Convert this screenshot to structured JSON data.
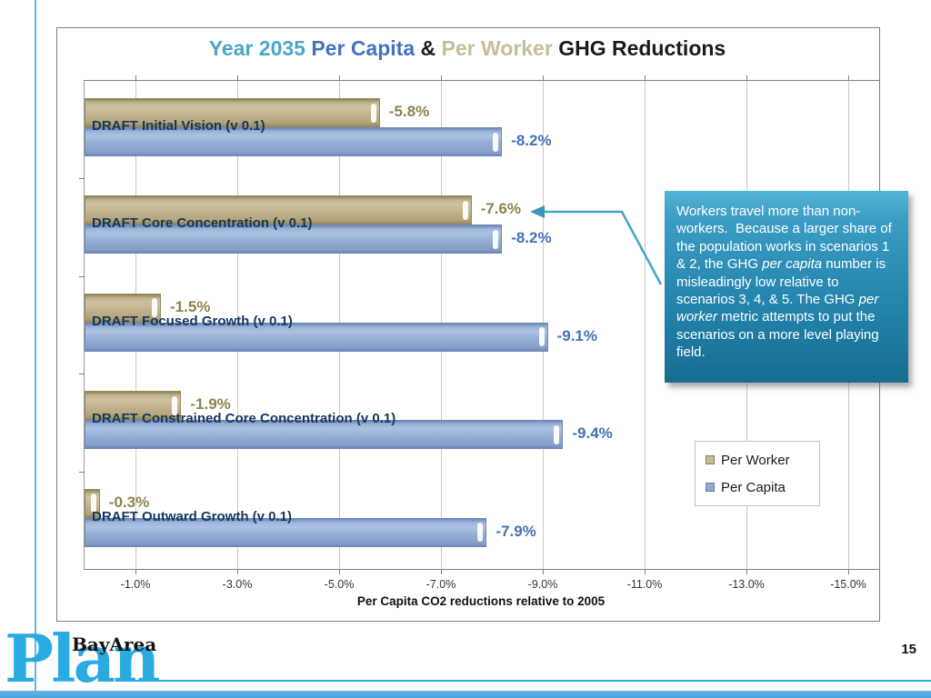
{
  "slide": {
    "page_number": "15"
  },
  "title": {
    "segments": [
      {
        "text": "Year 2035 ",
        "color": "#4BA6C9"
      },
      {
        "text": "Per Capita",
        "color": "#4473BE"
      },
      {
        "text": " & ",
        "color": "#1a1a1a"
      },
      {
        "text": "Per Worker",
        "color": "#C6BD98"
      },
      {
        "text": " GHG Reductions",
        "color": "#1a1a1a"
      }
    ]
  },
  "chart_data": {
    "type": "bar",
    "orientation": "horizontal",
    "categories": [
      "DRAFT Initial Vision (v 0.1)",
      "DRAFT Core Concentration (v 0.1)",
      "DRAFT Focused Growth (v 0.1)",
      "DRAFT Constrained Core Concentration (v 0.1)",
      "DRAFT Outward Growth (v 0.1)"
    ],
    "series": [
      {
        "name": "Per Worker",
        "color": "#C2B48E",
        "values": [
          -5.8,
          -7.6,
          -1.5,
          -1.9,
          -0.3
        ],
        "labels": [
          "-5.8%",
          "-7.6%",
          "-1.5%",
          "-1.9%",
          "-0.3%"
        ]
      },
      {
        "name": "Per Capita",
        "color": "#93AED4",
        "values": [
          -8.2,
          -8.2,
          -9.1,
          -9.4,
          -7.9
        ],
        "labels": [
          "-8.2%",
          "-8.2%",
          "-9.1%",
          "-9.4%",
          "-7.9%"
        ]
      }
    ],
    "x_ticks": [
      "-1.0%",
      "-3.0%",
      "-5.0%",
      "-7.0%",
      "-9.0%",
      "-11.0%",
      "-13.0%",
      "-15.0%"
    ],
    "xlabel": "Per Capita CO2 reductions relative to 2005",
    "xlim": [
      0,
      -15.6
    ],
    "grid": true,
    "legend_position": "right-middle"
  },
  "legend": {
    "items": [
      {
        "label": "Per Worker",
        "swatch": "tan"
      },
      {
        "label": "Per Capita",
        "swatch": "blue"
      }
    ]
  },
  "callout": {
    "segments": [
      {
        "text": "Workers travel more than non-workers.  Because a larger share of the population works in scenarios 1 & 2, the GHG ",
        "italic": false
      },
      {
        "text": "per capita",
        "italic": true
      },
      {
        "text": " number is misleadingly low relative to scenarios 3, 4, & 5. The GHG ",
        "italic": false
      },
      {
        "text": "per worker",
        "italic": true
      },
      {
        "text": " metric attempts to put the scenarios on a more level playing field.",
        "italic": false
      }
    ]
  },
  "logo": {
    "top_text": "BayArea",
    "main_text": "Plan"
  },
  "colors": {
    "accent_cyan": "#29ABE2",
    "bar_tan": "#C2B48E",
    "bar_blue": "#93AED4",
    "label_tan": "#8F824E",
    "label_blue": "#4470B8",
    "category_text": "#17375E",
    "callout_top": "#55B4D6",
    "callout_bottom": "#176C90"
  }
}
